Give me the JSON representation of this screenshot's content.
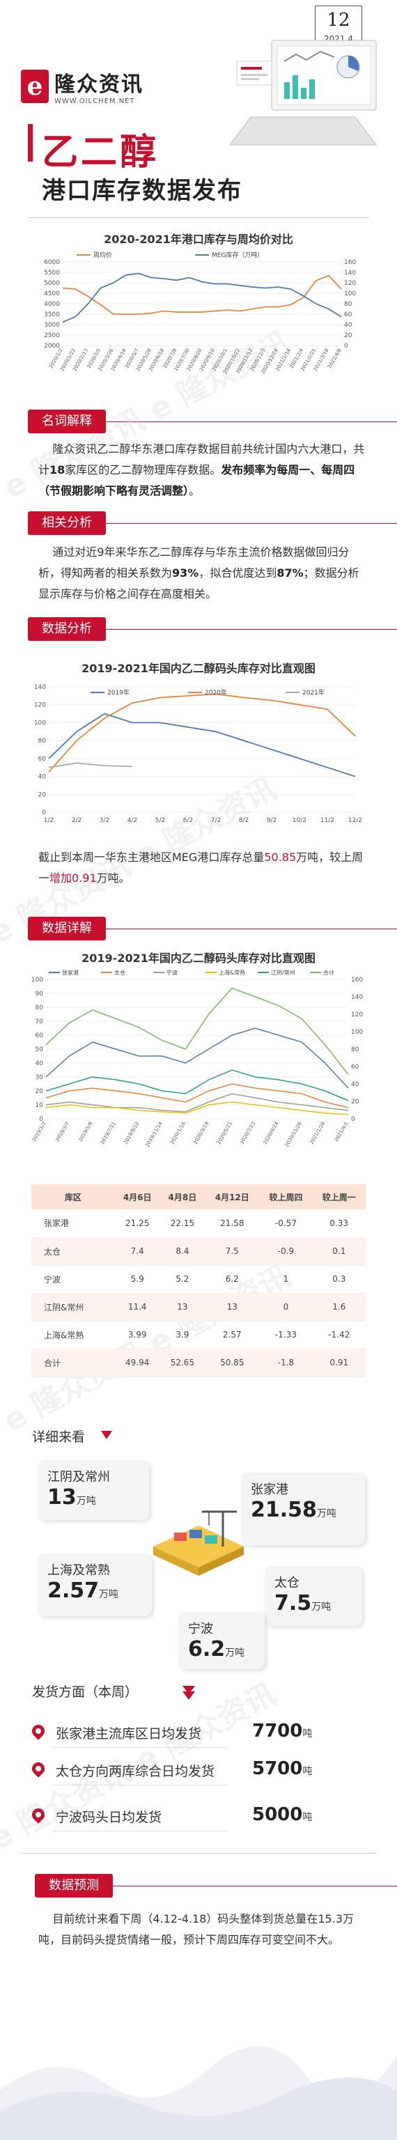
{
  "header": {
    "issue_number": "12",
    "issue_date": "2021.4",
    "logo_cn": "隆众资讯",
    "logo_en": "WWW.OILCHEM.NET",
    "logo_mark": "e",
    "title": "乙二醇",
    "subtitle": "港口库存数据发布"
  },
  "chart1": {
    "title": "2020-2021年港口库存与周均价对比",
    "legend": [
      "周均价",
      "MEG库存（万吨）"
    ],
    "y_left_ticks": [
      "6000",
      "5500",
      "5000",
      "4500",
      "4000",
      "3500",
      "3000",
      "2500",
      "2000"
    ],
    "y_right_ticks": [
      "160",
      "140",
      "120",
      "100",
      "80",
      "60",
      "40",
      "20",
      "0"
    ],
    "x_ticks": [
      "2020/1/2",
      "2020/1/23",
      "2020/2/13",
      "2020/3/5",
      "2020/3/26",
      "2020/4/16",
      "2020/5/7",
      "2020/5/28",
      "2020/6/18",
      "2020/7/9",
      "2020/7/30",
      "2020/8/20",
      "2020/9/10",
      "2020/10/1",
      "2020/10/22",
      "2020/11/12",
      "2020/12/3",
      "2020/12/24",
      "2021/1/14",
      "2021/2/4",
      "2021/2/25",
      "2021/3/18",
      "2021/4/8"
    ]
  },
  "section1": {
    "tag": "名词解释",
    "text_a": "隆众资讯乙二醇华东港口库存数据目前共统计国内六大港口，共计",
    "bold_a": "18",
    "text_b": "家库区的乙二醇物理库存数据。",
    "bold_b": "发布频率为每周一、每周四（节假期影响下略有灵活调整）",
    "text_c": "。"
  },
  "section2": {
    "tag": "相关分析",
    "text_a": "通过对近9年来华东乙二醇库存与华东主流价格数据做回归分析，得知两者的相关系数为",
    "bold_a": "93%",
    "text_b": "，拟合优度达到",
    "bold_b": "87%",
    "text_c": "；数据分析显示库存与价格之间存在高度相关。"
  },
  "section3": {
    "tag": "数据分析",
    "chart_title": "2019-2021年国内乙二醇码头库存对比直观图",
    "y_ticks": [
      "140",
      "120",
      "100",
      "80",
      "60",
      "40",
      "20",
      "0"
    ],
    "x_ticks": [
      "1/2",
      "2/2",
      "3/2",
      "4/2",
      "5/2",
      "6/2",
      "7/2",
      "8/2",
      "9/2",
      "10/2",
      "11/2",
      "12/2"
    ],
    "series_names": [
      "2019年",
      "2020年",
      "2021年"
    ],
    "text_a": "截止到本周一华东主港地区MEG港口库存总量",
    "value_a": "50.85",
    "text_b": "万吨，较上周一",
    "value_b": "增加0.91",
    "text_c": "万吨。"
  },
  "section4": {
    "tag": "数据详解",
    "chart_title": "2019-2021年国内乙二醇码头库存对比直观图",
    "legend": [
      "张家港",
      "太仓",
      "宁波",
      "上海&常熟",
      "江阴/常州",
      "合计"
    ],
    "y_left_ticks": [
      "100",
      "90",
      "80",
      "70",
      "60",
      "50",
      "40",
      "30",
      "20",
      "10",
      "0"
    ],
    "y_right_ticks": [
      "160",
      "140",
      "120",
      "100",
      "80",
      "60",
      "40",
      "20",
      "0"
    ],
    "x_ticks": [
      "2019/1/3",
      "2019/3/7",
      "2019/5/9",
      "2019/7/11",
      "2019/9/12",
      "2019/11/14",
      "2020/1/16",
      "2020/3/19",
      "2020/5/21",
      "2020/7/23",
      "2020/9/24",
      "2020/11/26",
      "2021/1/28",
      "2021/4/1"
    ]
  },
  "table": {
    "headers": [
      "库区",
      "4月6日",
      "4月8日",
      "4月12日",
      "较上周四",
      "较上周一"
    ],
    "rows": [
      [
        "张家港",
        "21.25",
        "22.15",
        "21.58",
        "-0.57",
        "0.33"
      ],
      [
        "太仓",
        "7.4",
        "8.4",
        "7.5",
        "-0.9",
        "0.1"
      ],
      [
        "宁波",
        "5.9",
        "5.2",
        "6.2",
        "1",
        "0.3"
      ],
      [
        "江阴&常州",
        "11.4",
        "13",
        "13",
        "0",
        "1.6"
      ],
      [
        "上海&常熟",
        "3.99",
        "3.9",
        "2.57",
        "-1.33",
        "-1.42"
      ],
      [
        "合计",
        "49.94",
        "52.65",
        "50.85",
        "-1.8",
        "0.91"
      ]
    ]
  },
  "detail": {
    "label": "详细来看",
    "cards": [
      {
        "name": "江阴及常州",
        "value": "13",
        "unit": "万吨"
      },
      {
        "name": "张家港",
        "value": "21.58",
        "unit": "万吨"
      },
      {
        "name": "上海及常熟",
        "value": "2.57",
        "unit": "万吨"
      },
      {
        "name": "太仓",
        "value": "7.5",
        "unit": "万吨"
      },
      {
        "name": "宁波",
        "value": "6.2",
        "unit": "万吨"
      }
    ]
  },
  "shipping": {
    "heading": "发货方面（本周）",
    "rows": [
      {
        "name": "张家港主流库区日均发货",
        "value": "7700",
        "unit": "吨"
      },
      {
        "name": "太仓方向两库综合日均发货",
        "value": "5700",
        "unit": "吨"
      },
      {
        "name": "宁波码头日均发货",
        "value": "5000",
        "unit": "吨"
      }
    ]
  },
  "forecast": {
    "tag": "数据预测",
    "text": "目前统计来看下周（4.12-4.18）码头整体到货总量在15.3万吨，目前码头提货情绪一般，预计下周四库存可变空间不大。"
  },
  "chart_data": [
    {
      "type": "line",
      "title": "2020-2021年港口库存与周均价对比",
      "series": [
        {
          "name": "周均价",
          "axis": "left",
          "values": [
            4750,
            4700,
            4350,
            3950,
            3500,
            3500,
            3500,
            3550,
            3650,
            3600,
            3600,
            3600,
            3650,
            3700,
            3650,
            3750,
            3850,
            3850,
            3950,
            4300,
            5100,
            5350,
            4700
          ]
        },
        {
          "name": "MEG库存（万吨）",
          "axis": "right",
          "values": [
            45,
            55,
            80,
            110,
            120,
            135,
            138,
            130,
            128,
            125,
            130,
            122,
            118,
            118,
            115,
            112,
            110,
            112,
            108,
            95,
            80,
            70,
            55
          ]
        }
      ],
      "ylim_left": [
        2000,
        6000
      ],
      "ylim_right": [
        0,
        160
      ]
    },
    {
      "type": "line",
      "title": "2019-2021年国内乙二醇码头库存对比直观图",
      "categories": [
        "1/2",
        "2/2",
        "3/2",
        "4/2",
        "5/2",
        "6/2",
        "7/2",
        "8/2",
        "9/2",
        "10/2",
        "11/2",
        "12/2"
      ],
      "series": [
        {
          "name": "2019年",
          "values": [
            60,
            90,
            110,
            100,
            100,
            95,
            90,
            80,
            70,
            60,
            50,
            40
          ]
        },
        {
          "name": "2020年",
          "values": [
            45,
            80,
            105,
            122,
            128,
            130,
            132,
            128,
            125,
            120,
            115,
            85
          ]
        },
        {
          "name": "2021年",
          "values": [
            50,
            55,
            52,
            51,
            null,
            null,
            null,
            null,
            null,
            null,
            null,
            null
          ]
        }
      ],
      "ylim": [
        0,
        140
      ]
    },
    {
      "type": "line",
      "title": "2019-2021年国内乙二醇码头库存对比直观图",
      "series": [
        {
          "name": "张家港",
          "values": [
            30,
            45,
            55,
            50,
            45,
            45,
            40,
            50,
            60,
            65,
            60,
            55,
            40,
            22
          ]
        },
        {
          "name": "太仓",
          "values": [
            15,
            20,
            22,
            20,
            18,
            15,
            12,
            20,
            25,
            22,
            20,
            18,
            12,
            8
          ]
        },
        {
          "name": "宁波",
          "values": [
            10,
            12,
            10,
            8,
            8,
            6,
            5,
            12,
            18,
            15,
            12,
            10,
            8,
            6
          ]
        },
        {
          "name": "上海&常熟",
          "values": [
            8,
            10,
            8,
            8,
            6,
            5,
            4,
            10,
            12,
            10,
            8,
            6,
            4,
            3
          ]
        },
        {
          "name": "江阴/常州",
          "values": [
            20,
            25,
            30,
            28,
            25,
            20,
            18,
            28,
            35,
            30,
            28,
            25,
            20,
            13
          ]
        },
        {
          "name": "合计",
          "axis": "right",
          "values": [
            85,
            110,
            125,
            115,
            105,
            90,
            80,
            120,
            150,
            140,
            130,
            115,
            85,
            51
          ]
        }
      ],
      "ylim_left": [
        0,
        100
      ],
      "ylim_right": [
        0,
        160
      ]
    }
  ]
}
